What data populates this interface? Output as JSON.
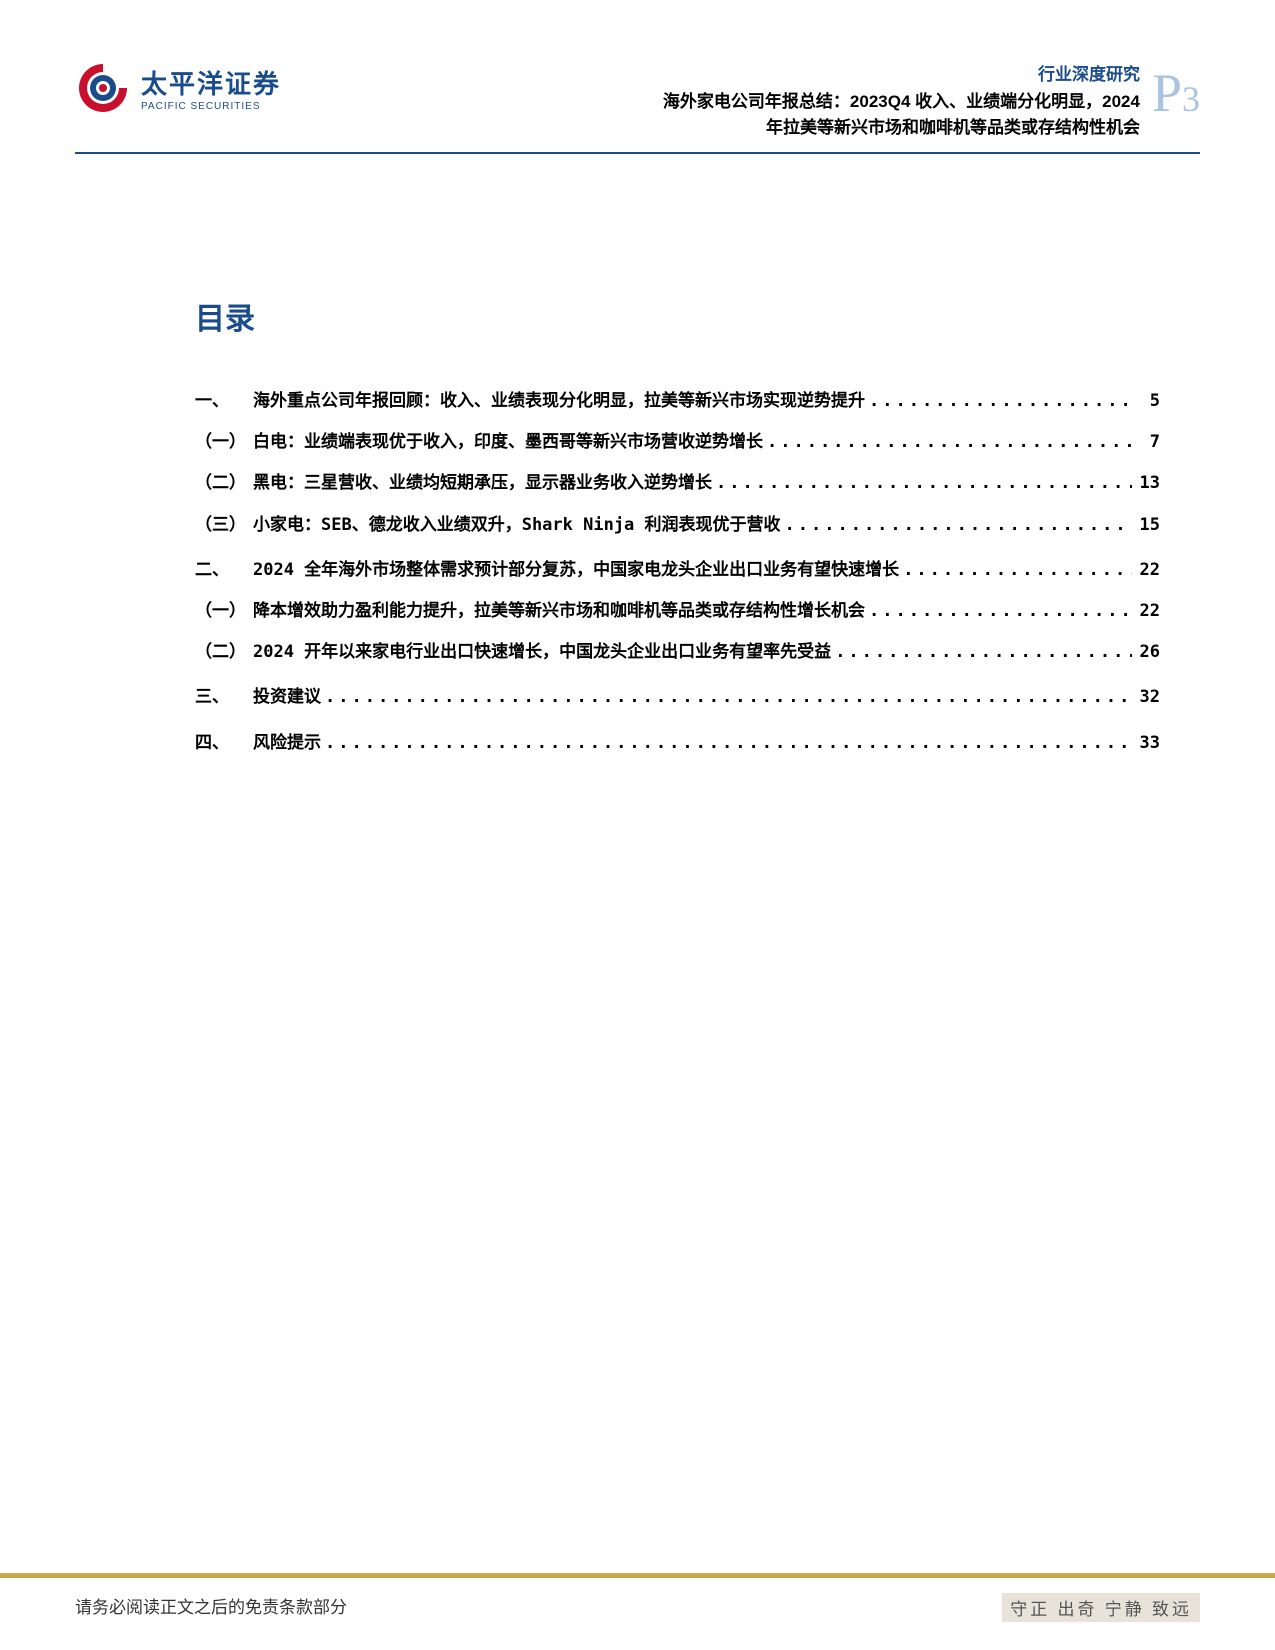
{
  "brand": {
    "name_cn": "太平洋证券",
    "name_en": "PACIFIC SECURITIES",
    "logo_colors": {
      "outer": "#c8102e",
      "inner": "#1a4b8c",
      "accent": "#c8102e"
    }
  },
  "header": {
    "category": "行业深度研究",
    "title_line1": "海外家电公司年报总结：2023Q4 收入、业绩端分化明显，2024",
    "title_line2": "年拉美等新兴市场和咖啡机等品类或存结构性机会",
    "page_letter": "P",
    "page_number": "3"
  },
  "toc": {
    "title": "目录",
    "entries": [
      {
        "level": 1,
        "num": "一、",
        "text": "海外重点公司年报回顾：收入、业绩表现分化明显，拉美等新兴市场实现逆势提升",
        "page": "5"
      },
      {
        "level": 2,
        "num": "（一）",
        "text": "白电：业绩端表现优于收入，印度、墨西哥等新兴市场营收逆势增长",
        "page": "7"
      },
      {
        "level": 2,
        "num": "（二）",
        "text": "黑电：三星营收、业绩均短期承压，显示器业务收入逆势增长",
        "page": "13"
      },
      {
        "level": 2,
        "num": "（三）",
        "text": "小家电：SEB、德龙收入业绩双升，Shark Ninja 利润表现优于营收",
        "page": "15"
      },
      {
        "level": 1,
        "num": "二、",
        "text": "2024 全年海外市场整体需求预计部分复苏，中国家电龙头企业出口业务有望快速增长",
        "page": "22"
      },
      {
        "level": 2,
        "num": "（一）",
        "text": "降本增效助力盈利能力提升，拉美等新兴市场和咖啡机等品类或存结构性增长机会",
        "page": "22"
      },
      {
        "level": 2,
        "num": "（二）",
        "text": "2024 开年以来家电行业出口快速增长，中国龙头企业出口业务有望率先受益",
        "page": "26"
      },
      {
        "level": 1,
        "num": "三、",
        "text": "投资建议",
        "page": "32"
      },
      {
        "level": 1,
        "num": "四、",
        "text": "风险提示",
        "page": "33"
      }
    ]
  },
  "footer": {
    "left": "请务必阅读正文之后的免责条款部分",
    "right": "守正 出奇 宁静 致远"
  },
  "colors": {
    "brand_blue": "#1a4b8c",
    "page_num": "#a8c4e0",
    "gold_bar": "#c9a94a",
    "text": "#000000",
    "footer_bg": "#e8e3d8"
  }
}
